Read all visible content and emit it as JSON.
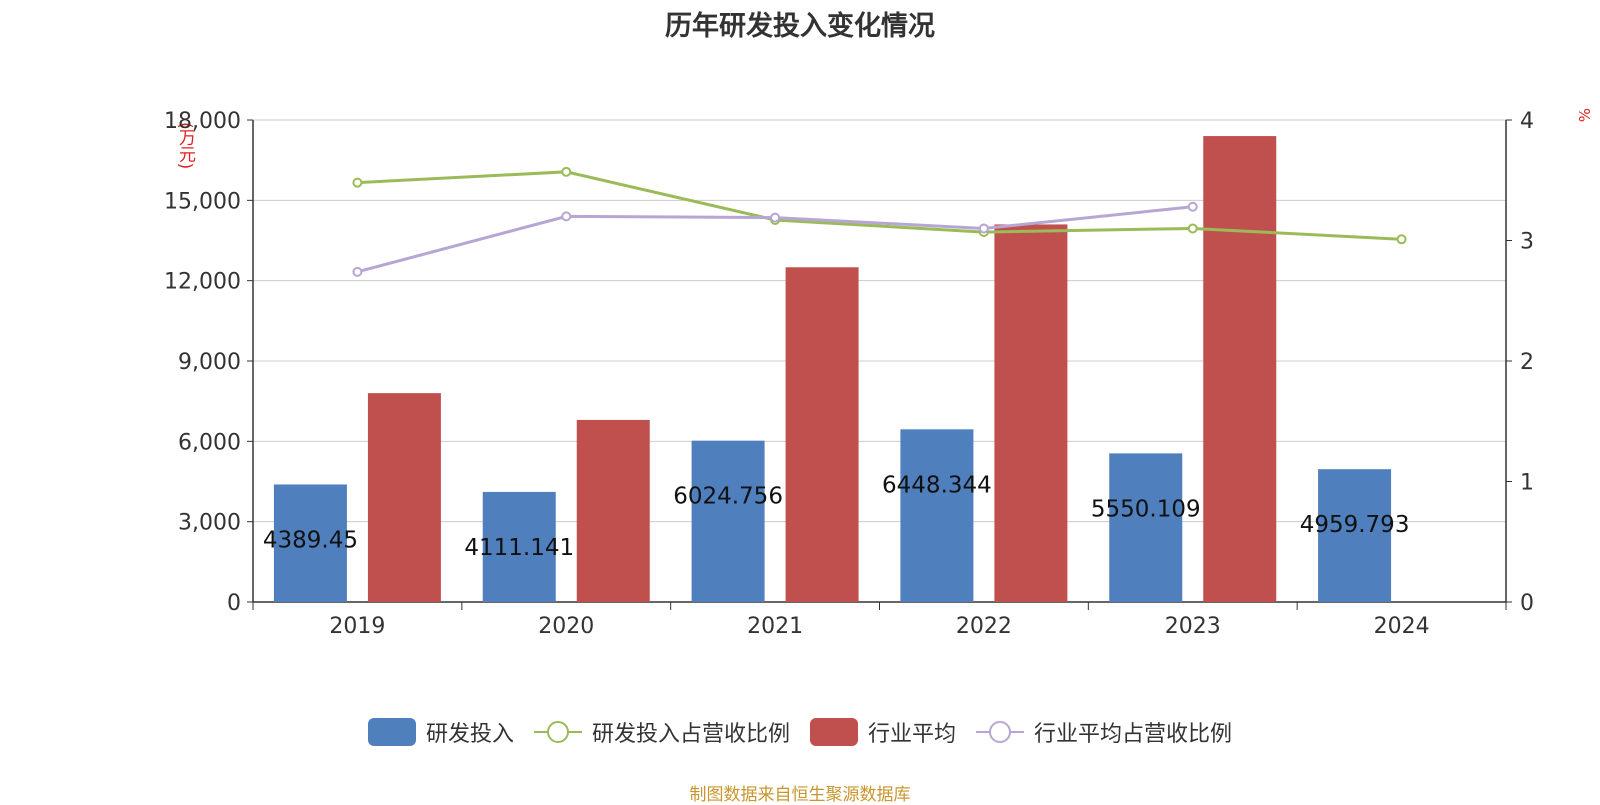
{
  "title": "历年研发投入变化情况",
  "unit_left": "(万元)",
  "unit_right": "%",
  "source": "制图数据来自恒生聚源数据库",
  "colors": {
    "rd_bar": "#4f7fbd",
    "industry_bar": "#c0504d",
    "rd_ratio_line": "#9bbb59",
    "industry_ratio_line": "#b7a6d4",
    "axis": "#333333",
    "grid": "#cccccc",
    "unit_text": "#e02020",
    "source_text": "#c8962c"
  },
  "legend": [
    {
      "label": "研发投入",
      "kind": "bar",
      "color": "#4f7fbd"
    },
    {
      "label": "研发投入占营收比例",
      "kind": "line",
      "color": "#9bbb59"
    },
    {
      "label": "行业平均",
      "kind": "bar",
      "color": "#c0504d"
    },
    {
      "label": "行业平均占营收比例",
      "kind": "line",
      "color": "#b7a6d4"
    }
  ],
  "chart_data": {
    "type": "bar",
    "categories": [
      "2019",
      "2020",
      "2021",
      "2022",
      "2023",
      "2024"
    ],
    "ylim_left": [
      0,
      18000
    ],
    "yticks_left": [
      "0",
      "3,000",
      "6,000",
      "9,000",
      "12,000",
      "15,000",
      "18,000"
    ],
    "ylim_right": [
      0,
      4
    ],
    "yticks_right": [
      "0",
      "1",
      "2",
      "3",
      "4"
    ],
    "series": [
      {
        "name": "研发投入",
        "type": "bar",
        "axis": "left",
        "values": [
          4389.45,
          4111.141,
          6024.756,
          6448.344,
          5550.109,
          4959.793
        ],
        "labels": [
          "4389.45",
          "4111.141",
          "6024.756",
          "6448.344",
          "5550.109",
          "4959.793"
        ]
      },
      {
        "name": "行业平均",
        "type": "bar",
        "axis": "left",
        "values": [
          7800,
          6800,
          12500,
          14100,
          17400,
          null
        ]
      },
      {
        "name": "研发投入占营收比例",
        "type": "line",
        "axis": "right",
        "values": [
          3.48,
          3.57,
          3.17,
          3.07,
          3.1,
          3.01
        ]
      },
      {
        "name": "行业平均占营收比例",
        "type": "line",
        "axis": "right",
        "values": [
          2.74,
          3.2,
          3.19,
          3.1,
          3.28,
          null
        ]
      }
    ],
    "grid": true,
    "legend_position": "bottom"
  }
}
